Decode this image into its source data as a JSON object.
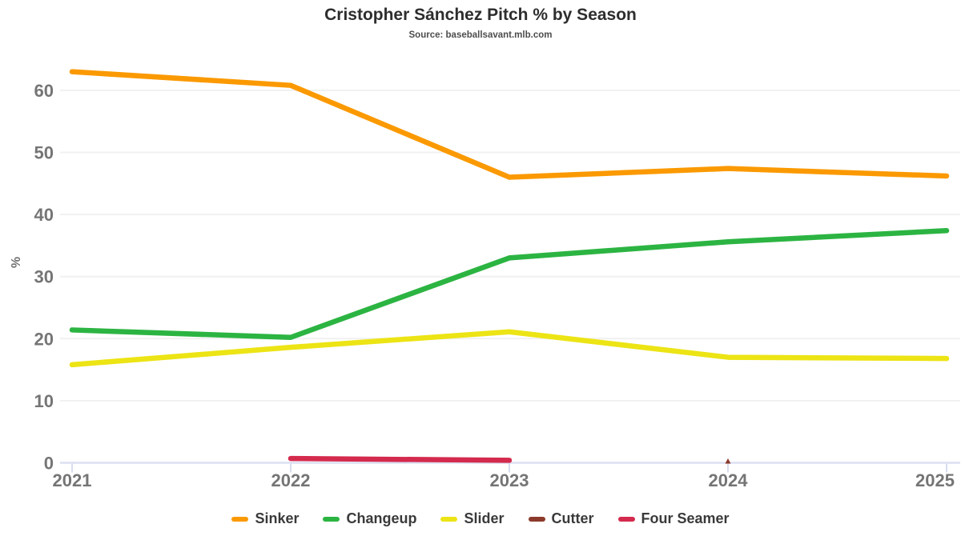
{
  "title": "Cristopher Sánchez Pitch % by Season",
  "subtitle": "Source: baseballsavant.mlb.com",
  "chart_data": {
    "type": "line",
    "x_labels": [
      "2021",
      "2022",
      "2023",
      "2024",
      "2025"
    ],
    "series": [
      {
        "name": "Sinker",
        "color": "#fb9900",
        "values": [
          63.0,
          60.8,
          46.0,
          47.4,
          46.2
        ]
      },
      {
        "name": "Changeup",
        "color": "#2cb442",
        "values": [
          21.4,
          20.2,
          33.0,
          35.6,
          37.4
        ]
      },
      {
        "name": "Slider",
        "color": "#ece414",
        "values": [
          15.8,
          18.6,
          21.1,
          17.0,
          16.8
        ]
      },
      {
        "name": "Cutter",
        "color": "#8b3a2b",
        "values": [
          null,
          null,
          null,
          0.2,
          null
        ]
      },
      {
        "name": "Four Seamer",
        "color": "#d42a4d",
        "values": [
          null,
          0.7,
          0.4,
          null,
          null
        ]
      }
    ],
    "ylabel": "%",
    "xlabel": "",
    "yticks": [
      0,
      10,
      20,
      30,
      40,
      50,
      60
    ],
    "ylim": [
      0,
      66.5
    ],
    "grid": true,
    "legend_position": "bottom"
  },
  "colors": {
    "gridline": "#f1f1f1",
    "zero_axis": "#dce1f2",
    "tick_mark": "#d7ddf0",
    "axis_text": "#757575"
  }
}
